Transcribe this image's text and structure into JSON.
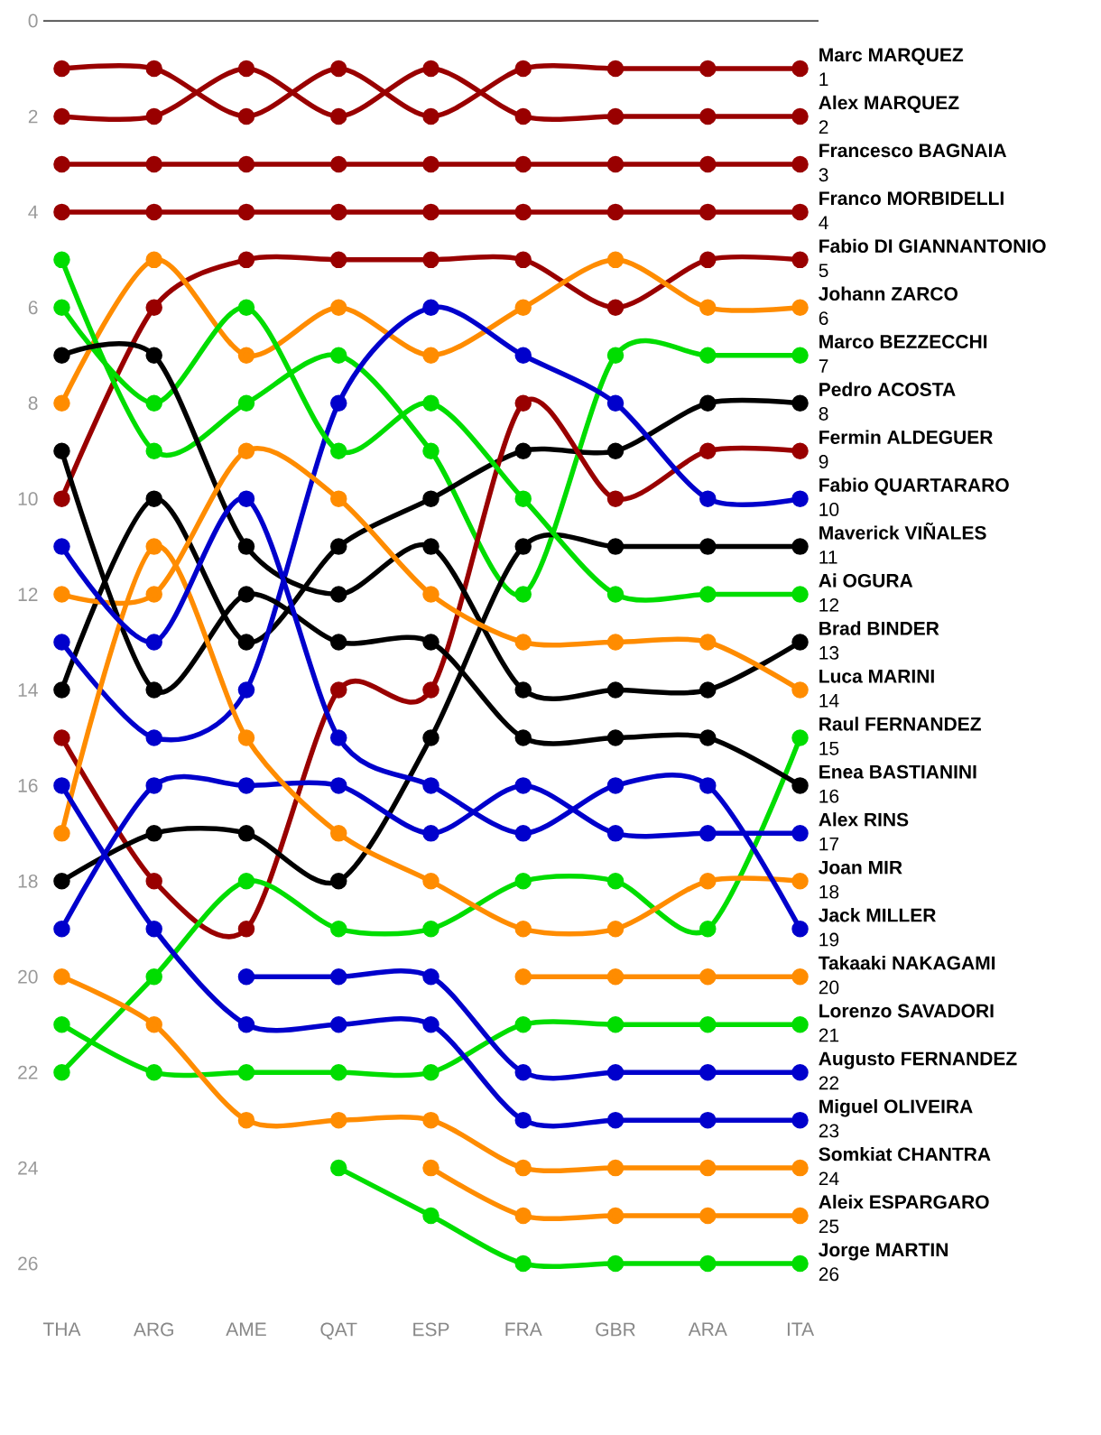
{
  "chart_data": {
    "type": "line",
    "categories": [
      "THA",
      "ARG",
      "AME",
      "QAT",
      "ESP",
      "FRA",
      "GBR",
      "ARA",
      "ITA"
    ],
    "ylim": [
      26,
      0
    ],
    "yticks": [
      0,
      2,
      4,
      6,
      8,
      10,
      12,
      14,
      16,
      18,
      20,
      22,
      24,
      26
    ],
    "grid": false,
    "legend": false,
    "marker": "circle",
    "line_style": "solid",
    "ref_lines": [
      {
        "axis": "y",
        "value": 0,
        "color": "#000000"
      }
    ],
    "series": [
      {
        "name": "Marc MARQUEZ",
        "color": "#990000",
        "values": [
          1,
          1,
          2,
          1,
          2,
          1,
          1,
          1,
          1
        ],
        "value_labels": [
          null,
          null,
          null,
          null,
          null,
          null,
          null,
          null,
          "1"
        ]
      },
      {
        "name": "Alex MARQUEZ",
        "color": "#990000",
        "values": [
          2,
          2,
          1,
          2,
          1,
          2,
          2,
          2,
          2
        ],
        "value_labels": [
          null,
          null,
          null,
          null,
          null,
          null,
          null,
          null,
          "2"
        ]
      },
      {
        "name": "Francesco BAGNAIA",
        "color": "#990000",
        "values": [
          3,
          3,
          3,
          3,
          3,
          3,
          3,
          3,
          3
        ],
        "value_labels": [
          null,
          null,
          null,
          null,
          null,
          null,
          null,
          null,
          "3"
        ]
      },
      {
        "name": "Franco MORBIDELLI",
        "color": "#990000",
        "values": [
          4,
          4,
          4,
          4,
          4,
          4,
          4,
          4,
          4
        ],
        "value_labels": [
          null,
          null,
          null,
          null,
          null,
          null,
          null,
          null,
          "4"
        ]
      },
      {
        "name": "Fabio DI GIANNANTONIO",
        "color": "#990000",
        "values": [
          10,
          6,
          5,
          5,
          5,
          5,
          6,
          5,
          5
        ],
        "value_labels": [
          null,
          null,
          null,
          null,
          null,
          null,
          null,
          null,
          "5"
        ]
      },
      {
        "name": "Johann ZARCO",
        "color": "#ff8c00",
        "values": [
          8,
          5,
          7,
          6,
          7,
          6,
          5,
          6,
          6
        ],
        "value_labels": [
          null,
          null,
          null,
          null,
          null,
          null,
          null,
          null,
          "6"
        ]
      },
      {
        "name": "Marco BEZZECCHI",
        "color": "#00dd00",
        "values": [
          5,
          9,
          8,
          7,
          9,
          12,
          7,
          7,
          7
        ],
        "value_labels": [
          null,
          null,
          null,
          null,
          null,
          null,
          null,
          null,
          "7"
        ]
      },
      {
        "name": "Pedro ACOSTA",
        "color": "#000000",
        "values": [
          14,
          10,
          13,
          11,
          10,
          9,
          9,
          8,
          8
        ],
        "value_labels": [
          null,
          null,
          null,
          null,
          null,
          null,
          null,
          null,
          "8"
        ]
      },
      {
        "name": "Fermin ALDEGUER",
        "color": "#990000",
        "values": [
          15,
          18,
          19,
          14,
          14,
          8,
          10,
          9,
          9
        ],
        "value_labels": [
          null,
          null,
          null,
          null,
          null,
          null,
          null,
          null,
          "9"
        ]
      },
      {
        "name": "Fabio QUARTARARO",
        "color": "#0000cc",
        "values": [
          13,
          15,
          14,
          8,
          6,
          7,
          8,
          10,
          10
        ],
        "value_labels": [
          null,
          null,
          null,
          null,
          null,
          null,
          null,
          null,
          "10"
        ]
      },
      {
        "name": "Maverick VIÑALES",
        "color": "#000000",
        "values": [
          18,
          17,
          17,
          18,
          15,
          11,
          11,
          11,
          11
        ],
        "value_labels": [
          null,
          null,
          null,
          null,
          null,
          null,
          null,
          null,
          "11"
        ]
      },
      {
        "name": "Ai OGURA",
        "color": "#00dd00",
        "values": [
          6,
          8,
          6,
          9,
          8,
          10,
          12,
          12,
          12
        ],
        "value_labels": [
          null,
          null,
          null,
          null,
          null,
          null,
          null,
          null,
          "12"
        ]
      },
      {
        "name": "Brad BINDER",
        "color": "#000000",
        "values": [
          7,
          7,
          11,
          12,
          11,
          14,
          14,
          14,
          13
        ],
        "value_labels": [
          null,
          null,
          null,
          null,
          null,
          null,
          null,
          null,
          "13"
        ]
      },
      {
        "name": "Luca MARINI",
        "color": "#ff8c00",
        "values": [
          12,
          12,
          9,
          10,
          12,
          13,
          13,
          13,
          14
        ],
        "value_labels": [
          null,
          null,
          null,
          null,
          null,
          null,
          null,
          null,
          "14"
        ]
      },
      {
        "name": "Raul FERNANDEZ",
        "color": "#00dd00",
        "values": [
          22,
          20,
          18,
          19,
          19,
          18,
          18,
          19,
          15
        ],
        "value_labels": [
          null,
          null,
          null,
          null,
          null,
          null,
          null,
          null,
          "15"
        ]
      },
      {
        "name": "Enea BASTIANINI",
        "color": "#000000",
        "values": [
          9,
          14,
          12,
          13,
          13,
          15,
          15,
          15,
          16
        ],
        "value_labels": [
          null,
          null,
          null,
          null,
          null,
          null,
          null,
          null,
          "16"
        ]
      },
      {
        "name": "Alex RINS",
        "color": "#0000cc",
        "values": [
          19,
          16,
          16,
          16,
          17,
          16,
          17,
          17,
          17
        ],
        "value_labels": [
          null,
          null,
          null,
          null,
          null,
          null,
          null,
          null,
          "17"
        ]
      },
      {
        "name": "Joan MIR",
        "color": "#ff8c00",
        "values": [
          17,
          11,
          15,
          17,
          18,
          19,
          19,
          18,
          18
        ],
        "value_labels": [
          null,
          null,
          null,
          null,
          null,
          null,
          null,
          null,
          "18"
        ]
      },
      {
        "name": "Jack MILLER",
        "color": "#0000cc",
        "values": [
          11,
          13,
          10,
          15,
          16,
          17,
          16,
          16,
          19
        ],
        "value_labels": [
          null,
          null,
          null,
          null,
          null,
          null,
          null,
          null,
          "19"
        ]
      },
      {
        "name": "Takaaki NAKAGAMI",
        "color": "#ff8c00",
        "values": [
          null,
          null,
          null,
          null,
          null,
          20,
          20,
          20,
          20
        ],
        "value_labels": [
          null,
          null,
          null,
          null,
          null,
          null,
          null,
          null,
          "20"
        ]
      },
      {
        "name": "Lorenzo SAVADORI",
        "color": "#00dd00",
        "values": [
          21,
          22,
          22,
          22,
          22,
          21,
          21,
          21,
          21
        ],
        "value_labels": [
          null,
          null,
          null,
          null,
          null,
          null,
          null,
          null,
          "21"
        ]
      },
      {
        "name": "Augusto FERNANDEZ",
        "color": "#0000cc",
        "values": [
          null,
          null,
          20,
          20,
          20,
          22,
          22,
          22,
          22
        ],
        "value_labels": [
          null,
          null,
          null,
          null,
          null,
          null,
          null,
          null,
          "22"
        ]
      },
      {
        "name": "Miguel OLIVEIRA",
        "color": "#0000cc",
        "values": [
          16,
          19,
          21,
          21,
          21,
          23,
          23,
          23,
          23
        ],
        "value_labels": [
          null,
          null,
          null,
          null,
          null,
          null,
          null,
          null,
          "23"
        ]
      },
      {
        "name": "Somkiat CHANTRA",
        "color": "#ff8c00",
        "values": [
          20,
          21,
          23,
          23,
          23,
          24,
          24,
          24,
          24
        ],
        "value_labels": [
          null,
          null,
          null,
          null,
          null,
          null,
          null,
          null,
          "24"
        ]
      },
      {
        "name": "Aleix ESPARGARO",
        "color": "#ff8c00",
        "values": [
          null,
          null,
          null,
          null,
          24,
          25,
          25,
          25,
          25
        ],
        "value_labels": [
          null,
          null,
          null,
          null,
          null,
          null,
          null,
          null,
          "25"
        ]
      },
      {
        "name": "Jorge MARTIN",
        "color": "#00dd00",
        "values": [
          null,
          null,
          null,
          24,
          25,
          26,
          26,
          26,
          26
        ],
        "value_labels": [
          null,
          null,
          null,
          null,
          null,
          null,
          null,
          null,
          "26"
        ]
      }
    ]
  }
}
